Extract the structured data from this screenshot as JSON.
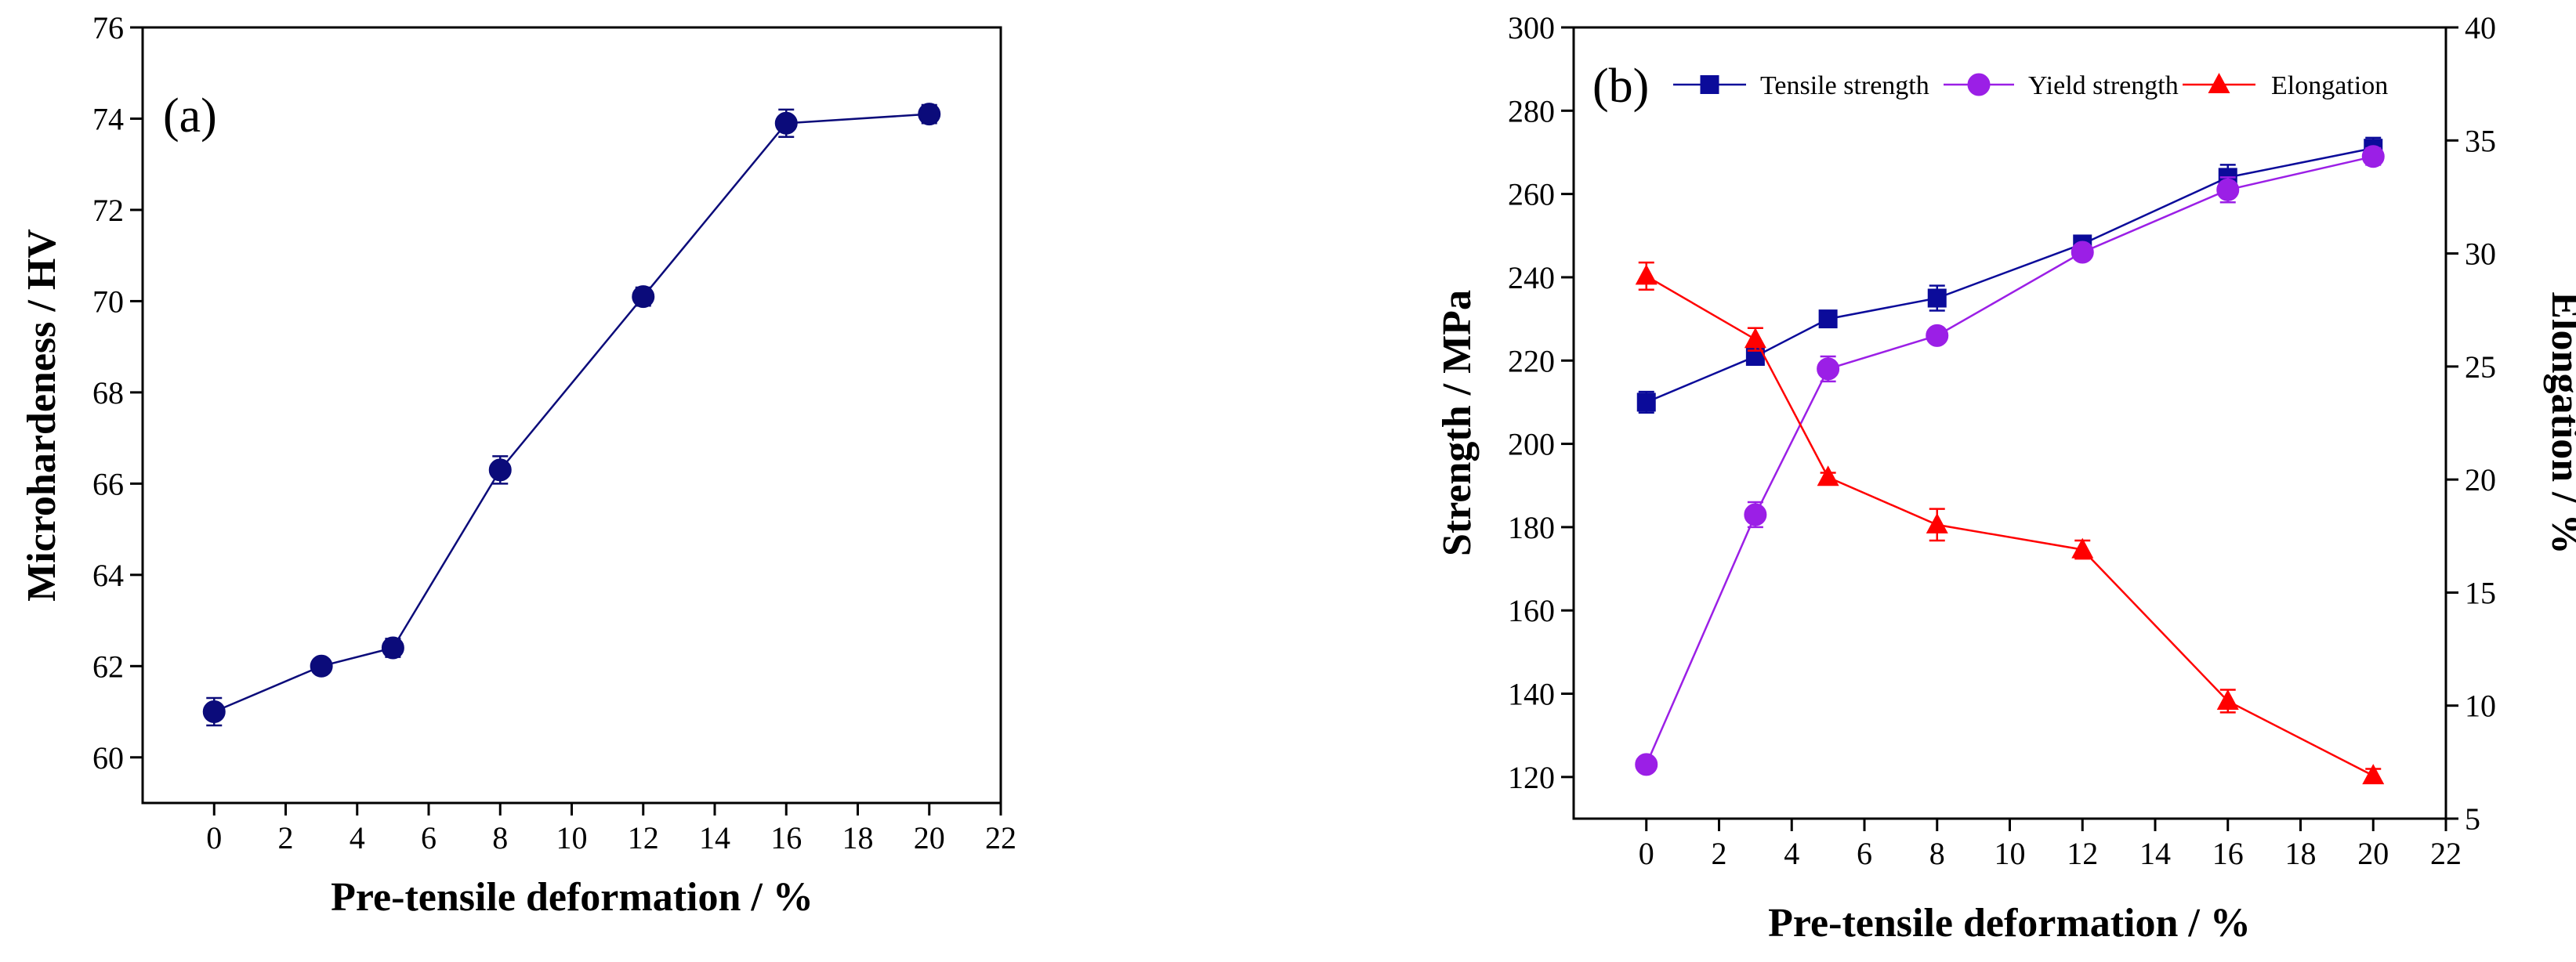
{
  "chart_data": [
    {
      "type": "line",
      "panel_label": "(a)",
      "xlabel": "Pre-tensile deformation / %",
      "ylabel": "Microhardeness / HV",
      "xlim": [
        -2,
        22
      ],
      "ylim": [
        59,
        76
      ],
      "xticks": [
        0,
        2,
        4,
        6,
        8,
        10,
        12,
        14,
        16,
        18,
        20,
        22
      ],
      "yticks": [
        60,
        62,
        64,
        66,
        68,
        70,
        72,
        74,
        76
      ],
      "series": [
        {
          "name": "Microhardness",
          "color": "#0b0b7a",
          "marker": "circle",
          "x": [
            0,
            3,
            5,
            8,
            12,
            16,
            20
          ],
          "values": [
            61.0,
            62.0,
            62.4,
            66.3,
            70.1,
            73.9,
            74.1
          ],
          "errors": [
            0.3,
            0.1,
            0.2,
            0.3,
            0.2,
            0.3,
            0.2
          ]
        }
      ]
    },
    {
      "type": "line",
      "panel_label": "(b)",
      "xlabel": "Pre-tensile deformation / %",
      "ylabel": "Strength / MPa",
      "y2label": "Elongation / %",
      "xlim": [
        -2,
        22
      ],
      "ylim": [
        110,
        300
      ],
      "y2lim": [
        5,
        40
      ],
      "xticks": [
        0,
        2,
        4,
        6,
        8,
        10,
        12,
        14,
        16,
        18,
        20,
        22
      ],
      "yticks": [
        120,
        140,
        160,
        180,
        200,
        220,
        240,
        260,
        280,
        300
      ],
      "y2ticks": [
        5,
        10,
        15,
        20,
        25,
        30,
        35,
        40
      ],
      "series": [
        {
          "name": "Tensile strength",
          "axis": "left",
          "color": "#0b0b9a",
          "marker": "square",
          "x": [
            0,
            3,
            5,
            8,
            12,
            16,
            20
          ],
          "values": [
            210,
            221,
            230,
            235,
            248,
            264,
            271
          ],
          "errors": [
            2.5,
            2,
            1.5,
            3,
            1.5,
            3,
            2.5
          ]
        },
        {
          "name": "Yield strength",
          "axis": "left",
          "color": "#9b1fe6",
          "marker": "circle",
          "x": [
            0,
            3,
            5,
            8,
            12,
            16,
            20
          ],
          "values": [
            123,
            183,
            218,
            226,
            246,
            261,
            269
          ],
          "errors": [
            1.5,
            3,
            3,
            1.5,
            1.5,
            3,
            2
          ]
        },
        {
          "name": "Elongation",
          "axis": "right",
          "color": "#ff0000",
          "marker": "triangle",
          "x": [
            0,
            3,
            5,
            8,
            12,
            16,
            20
          ],
          "values": [
            29.0,
            26.2,
            20.1,
            18.0,
            16.9,
            10.2,
            6.9
          ],
          "errors": [
            0.6,
            0.5,
            0.2,
            0.7,
            0.4,
            0.5,
            0.3
          ]
        }
      ]
    }
  ]
}
